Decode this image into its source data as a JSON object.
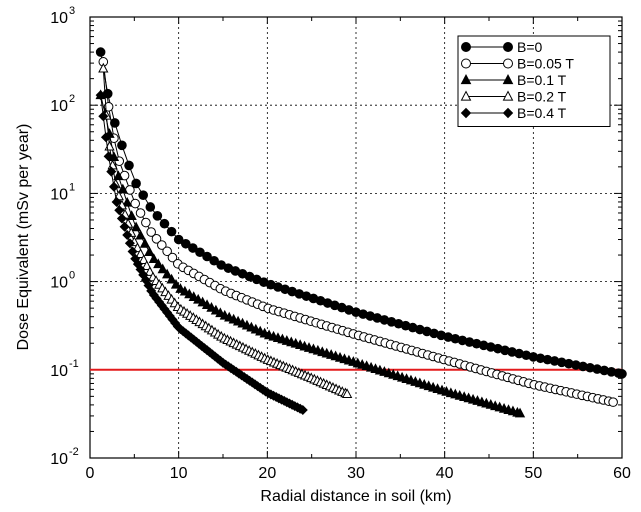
{
  "chart_data": {
    "type": "scatter",
    "xlabel": "Radial distance in soil (km)",
    "ylabel": "Dose Equivalent (mSv per year)",
    "xlim": [
      0,
      60
    ],
    "ylim": [
      0.01,
      1000
    ],
    "yscale": "log",
    "grid": true,
    "legend_position": "top-right",
    "x_ticks": [
      "0",
      "10",
      "20",
      "30",
      "40",
      "50",
      "60"
    ],
    "y_ticks": [
      {
        "base": "10",
        "exp": "-2"
      },
      {
        "base": "10",
        "exp": "-1"
      },
      {
        "base": "10",
        "exp": "0"
      },
      {
        "base": "10",
        "exp": "1"
      },
      {
        "base": "10",
        "exp": "2"
      },
      {
        "base": "10",
        "exp": "3"
      }
    ],
    "reference_line": {
      "y": 0.1,
      "color": "#e31a1c"
    },
    "series": [
      {
        "name": "B=0",
        "marker": "circle",
        "filled": true,
        "x_start": 1.2,
        "x_end": 60,
        "x_step": 0.8,
        "points": [
          [
            1.2,
            400
          ],
          [
            2,
            135
          ],
          [
            3,
            52
          ],
          [
            5,
            14
          ],
          [
            7,
            6.5
          ],
          [
            10,
            3.0
          ],
          [
            15,
            1.5
          ],
          [
            20,
            0.95
          ],
          [
            30,
            0.45
          ],
          [
            40,
            0.24
          ],
          [
            50,
            0.14
          ],
          [
            60,
            0.09
          ]
        ]
      },
      {
        "name": "B=0.05 T",
        "marker": "circle",
        "filled": false,
        "x_start": 1.5,
        "x_end": 59,
        "x_step": 0.6,
        "points": [
          [
            1.5,
            310
          ],
          [
            2,
            110
          ],
          [
            3,
            28
          ],
          [
            5,
            8
          ],
          [
            7,
            3.5
          ],
          [
            10,
            1.55
          ],
          [
            15,
            0.8
          ],
          [
            20,
            0.5
          ],
          [
            30,
            0.25
          ],
          [
            40,
            0.13
          ],
          [
            50,
            0.068
          ],
          [
            59,
            0.043
          ]
        ]
      },
      {
        "name": "B=0.1 T",
        "marker": "triangle",
        "filled": true,
        "x_start": 1.2,
        "x_end": 48.5,
        "x_step": 0.5,
        "points": [
          [
            1.2,
            130
          ],
          [
            2,
            60
          ],
          [
            3,
            18
          ],
          [
            5,
            4.5
          ],
          [
            7,
            1.9
          ],
          [
            10,
            0.85
          ],
          [
            15,
            0.42
          ],
          [
            20,
            0.25
          ],
          [
            30,
            0.12
          ],
          [
            40,
            0.057
          ],
          [
            48.5,
            0.032
          ]
        ]
      },
      {
        "name": "B=0.2 T",
        "marker": "triangle",
        "filled": false,
        "x_start": 1.5,
        "x_end": 29,
        "x_step": 0.35,
        "points": [
          [
            1.5,
            260
          ],
          [
            2,
            45
          ],
          [
            3,
            11
          ],
          [
            5,
            2.8
          ],
          [
            7,
            1.15
          ],
          [
            10,
            0.5
          ],
          [
            15,
            0.23
          ],
          [
            20,
            0.13
          ],
          [
            25,
            0.08
          ],
          [
            29,
            0.053
          ]
        ]
      },
      {
        "name": "B=0.4 T",
        "marker": "diamond",
        "filled": true,
        "x_start": 1.2,
        "x_end": 24,
        "x_step": 0.3,
        "points": [
          [
            1.2,
            130
          ],
          [
            2,
            30
          ],
          [
            3,
            8
          ],
          [
            5,
            1.9
          ],
          [
            7,
            0.75
          ],
          [
            10,
            0.3
          ],
          [
            15,
            0.12
          ],
          [
            20,
            0.055
          ],
          [
            24,
            0.035
          ]
        ]
      }
    ]
  }
}
